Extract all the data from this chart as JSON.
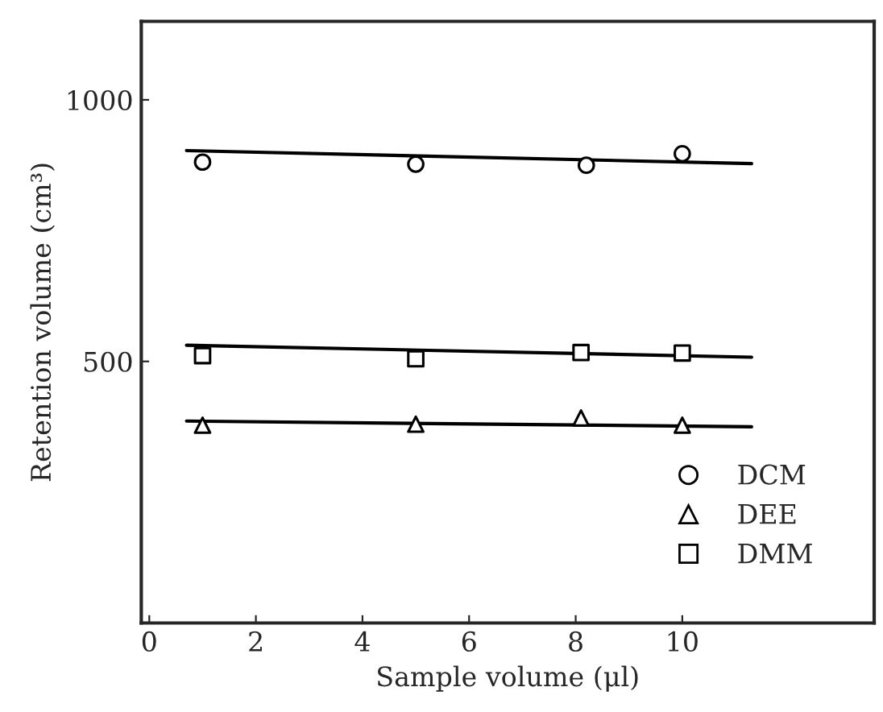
{
  "chart_data": {
    "type": "scatter",
    "xlabel": "Sample volume (μl)",
    "ylabel": "Retention volume (cm³)",
    "xlim": [
      -0.15,
      13.6
    ],
    "ylim": [
      0,
      1150
    ],
    "xticks": [
      0,
      2,
      4,
      6,
      8,
      10
    ],
    "yticks": [
      500,
      1000
    ],
    "legend": "bottom right",
    "grid": false,
    "series": [
      {
        "name": "DCM",
        "color": "#000000",
        "marker": "circle",
        "x": [
          1,
          5,
          8.2,
          10
        ],
        "values": [
          881,
          877,
          875,
          897
        ]
      },
      {
        "name": "DEE",
        "color": "#000000",
        "marker": "triangle",
        "x": [
          1,
          5,
          8.1,
          10
        ],
        "values": [
          378,
          380,
          392,
          378
        ]
      },
      {
        "name": "DMM",
        "color": "#000000",
        "marker": "square",
        "x": [
          1,
          5,
          8.1,
          10
        ],
        "values": [
          511,
          505,
          517,
          516
        ]
      },
      {
        "type": "line",
        "color": "#000000",
        "marker": "none",
        "line_style": "solid",
        "x": [
          0.7,
          11.3
        ],
        "values": [
          903,
          878
        ]
      },
      {
        "type": "line",
        "color": "#000000",
        "marker": "none",
        "line_style": "solid",
        "x": [
          0.7,
          11.3
        ],
        "values": [
          386,
          375
        ]
      },
      {
        "type": "line",
        "color": "#000000",
        "marker": "none",
        "line_style": "solid",
        "x": [
          0.7,
          11.3
        ],
        "values": [
          531,
          508
        ]
      }
    ]
  }
}
